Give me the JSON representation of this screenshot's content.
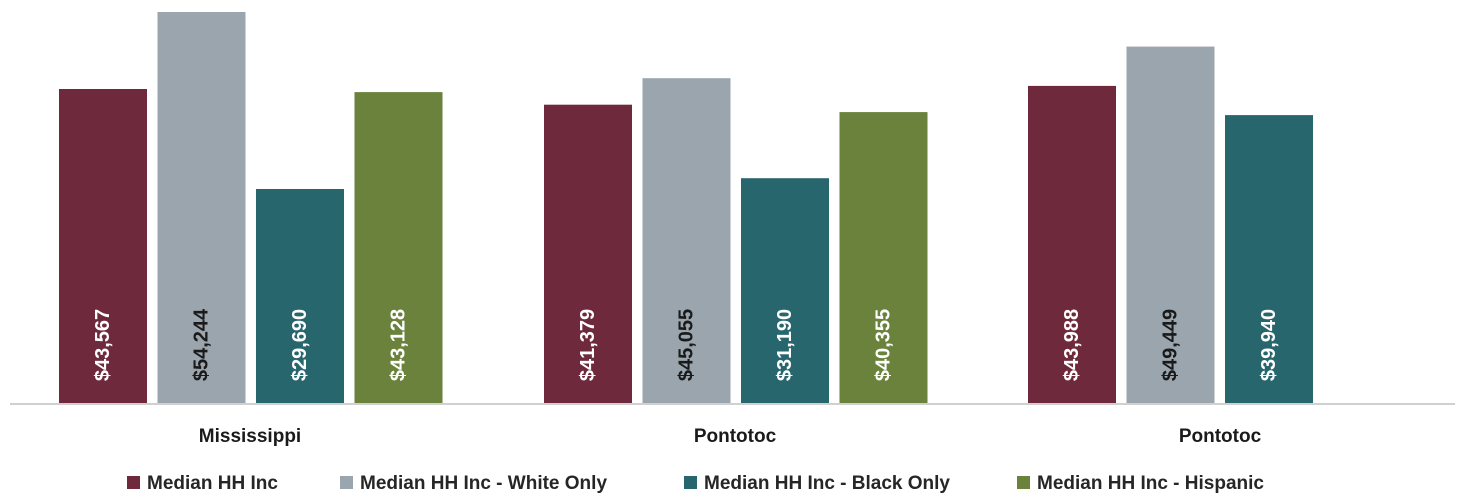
{
  "chart_data": {
    "type": "bar",
    "categories": [
      "Mississippi",
      "Pontotoc",
      "Pontotoc"
    ],
    "series": [
      {
        "name": "Median HH Inc",
        "color": "#6e2a3c",
        "label_color": "#ffffff",
        "values": [
          43567,
          41379,
          43988
        ],
        "labels": [
          "$43,567",
          "$41,379",
          "$43,988"
        ]
      },
      {
        "name": "Median HH Inc - White Only",
        "color": "#9aa5ae",
        "label_color": "#1a1a1a",
        "values": [
          54244,
          45055,
          49449
        ],
        "labels": [
          "$54,244",
          "$45,055",
          "$49,449"
        ]
      },
      {
        "name": "Median HH Inc - Black Only",
        "color": "#27666d",
        "label_color": "#ffffff",
        "values": [
          29690,
          31190,
          39940
        ],
        "labels": [
          "$29,690",
          "$31,190",
          "$39,940"
        ]
      },
      {
        "name": "Median HH Inc - Hispanic",
        "color": "#6a823b",
        "label_color": "#ffffff",
        "values": [
          43128,
          40355,
          null
        ],
        "labels": [
          "$43,128",
          "$40,355",
          ""
        ]
      }
    ],
    "ylim": [
      0,
      55000
    ],
    "grid": false,
    "legend": "bottom",
    "title": "",
    "xlabel": "",
    "ylabel": ""
  }
}
